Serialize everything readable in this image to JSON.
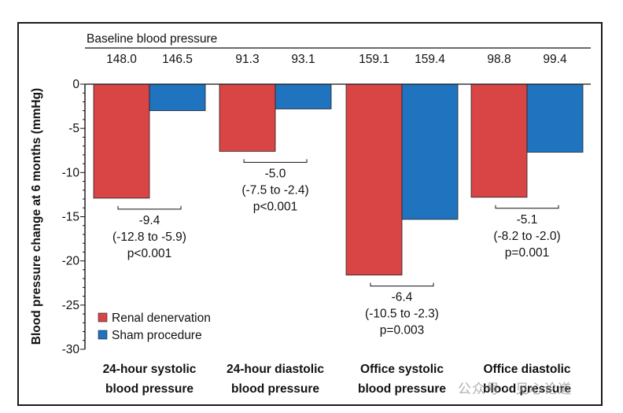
{
  "chart_data": {
    "type": "bar",
    "ylabel": "Blood pressure change at 6 months (mmHg)",
    "ylim": [
      -30,
      0
    ],
    "yticks": [
      0,
      -5,
      -10,
      -15,
      -20,
      -25,
      -30
    ],
    "baseline_title": "Baseline blood pressure",
    "categories": [
      {
        "line1": "24-hour systolic",
        "line2": "blood pressure"
      },
      {
        "line1": "24-hour diastolic",
        "line2": "blood pressure"
      },
      {
        "line1": "Office systolic",
        "line2": "blood pressure"
      },
      {
        "line1": "Office diastolic",
        "line2": "blood pressure"
      }
    ],
    "baseline_values": [
      [
        "148.0",
        "146.5"
      ],
      [
        "91.3",
        "93.1"
      ],
      [
        "159.1",
        "159.4"
      ],
      [
        "98.8",
        "99.4"
      ]
    ],
    "series": [
      {
        "name": "Renal denervation",
        "color": "#d94545",
        "values": [
          -12.9,
          -7.6,
          -21.6,
          -12.8
        ]
      },
      {
        "name": "Sham procedure",
        "color": "#1f73bf",
        "values": [
          -3.0,
          -2.8,
          -15.3,
          -7.7
        ]
      }
    ],
    "differences": [
      {
        "diff": "-9.4",
        "ci": "(-12.8 to -5.9)",
        "p": "p<0.001"
      },
      {
        "diff": "-5.0",
        "ci": "(-7.5 to -2.4)",
        "p": "p<0.001"
      },
      {
        "diff": "-6.4",
        "ci": "(-10.5 to -2.3)",
        "p": "p=0.003"
      },
      {
        "diff": "-5.1",
        "ci": "(-8.2 to -2.0)",
        "p": "p=0.001"
      }
    ],
    "legend_position": "bottom-left",
    "grid": false
  },
  "watermark": "公众号 · 见心论道"
}
